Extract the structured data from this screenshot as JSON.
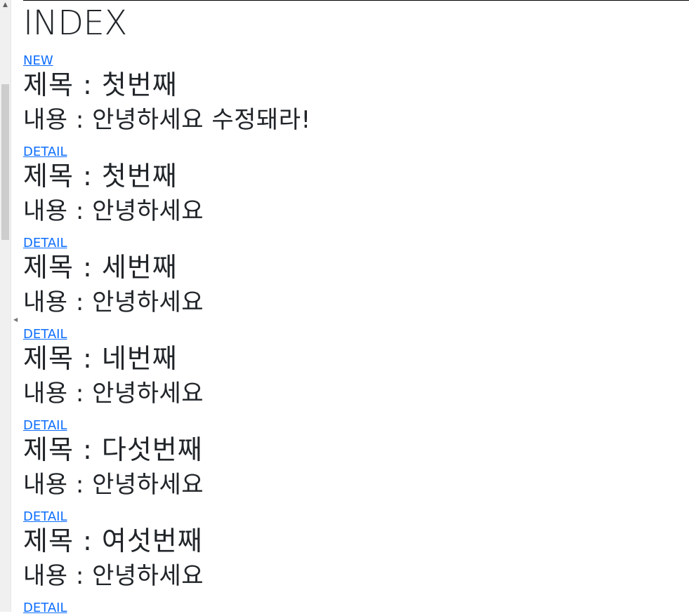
{
  "header": {
    "title": "INDEX",
    "new_label": "NEW"
  },
  "labels": {
    "title_prefix": "제목 : ",
    "content_prefix": "내용 : "
  },
  "posts": [
    {
      "title": "첫번째",
      "content": "안녕하세요 수정돼라!",
      "detail_label": "DETAIL"
    },
    {
      "title": "첫번째",
      "content": "안녕하세요",
      "detail_label": "DETAIL"
    },
    {
      "title": "세번째",
      "content": "안녕하세요",
      "detail_label": "DETAIL"
    },
    {
      "title": "네번째",
      "content": "안녕하세요",
      "detail_label": "DETAIL"
    },
    {
      "title": "다섯번째",
      "content": "안녕하세요",
      "detail_label": "DETAIL"
    },
    {
      "title": "여섯번째",
      "content": "안녕하세요",
      "detail_label": "DETAIL"
    }
  ],
  "colors": {
    "link": "#0d6efd",
    "text": "#212529"
  }
}
